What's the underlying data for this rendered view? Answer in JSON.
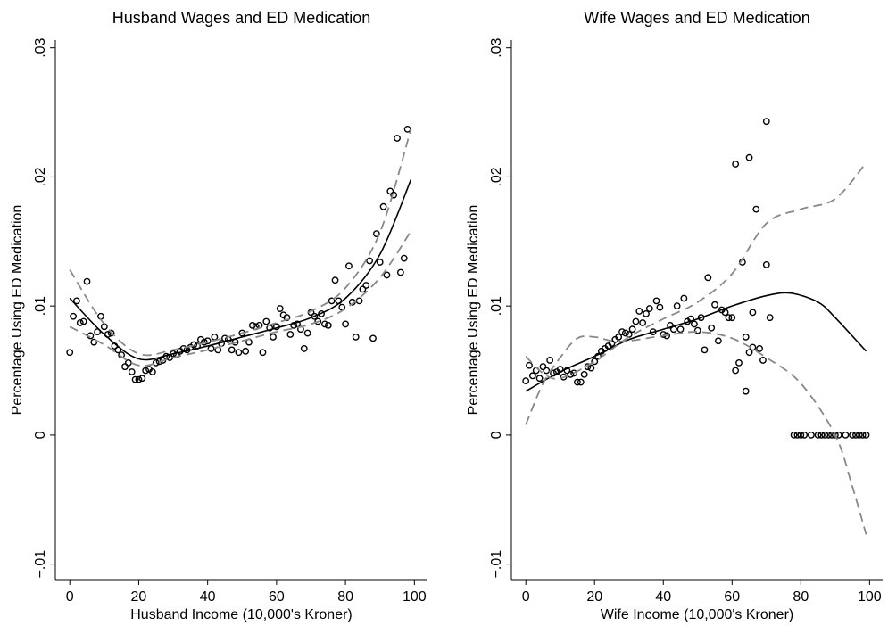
{
  "chart_data": [
    {
      "type": "scatter",
      "title": "Husband Wages and ED Medication",
      "x_label": "Husband Income (10,000's Kroner)",
      "y_label": "Percentage Using ED Medication",
      "xlim": [
        -4.2,
        103.8
      ],
      "ylim": [
        -0.0112,
        0.0306
      ],
      "xticks": [
        0,
        20,
        40,
        60,
        80,
        100
      ],
      "yticks": [
        {
          "value": -0.01,
          "label": "−.01"
        },
        0,
        {
          "value": 0.01,
          "label": ".01"
        },
        {
          "value": 0.02,
          "label": ".02"
        },
        {
          "value": 0.03,
          "label": ".03"
        }
      ],
      "series": [
        {
          "type": "scatter",
          "color": "#000000",
          "x": [
            0,
            1,
            2,
            3,
            4,
            5,
            6,
            7,
            8,
            9,
            10,
            11,
            12,
            13,
            14,
            15,
            16,
            17,
            18,
            19,
            20,
            21,
            22,
            23,
            24,
            25,
            26,
            27,
            28,
            29,
            30,
            31,
            32,
            33,
            34,
            35,
            36,
            37,
            38,
            39,
            40,
            41,
            42,
            43,
            44,
            45,
            46,
            47,
            48,
            49,
            50,
            51,
            52,
            53,
            54,
            55,
            56,
            57,
            58,
            59,
            60,
            61,
            62,
            63,
            64,
            65,
            66,
            67,
            68,
            69,
            70,
            71,
            72,
            73,
            74,
            75,
            76,
            77,
            78,
            79,
            80,
            81,
            82,
            83,
            84,
            85,
            86,
            87,
            88,
            89,
            90,
            91,
            92,
            93,
            94,
            95,
            96,
            97,
            98
          ],
          "values": [
            0.0064,
            0.0092,
            0.0104,
            0.0087,
            0.0088,
            0.0119,
            0.0077,
            0.0072,
            0.008,
            0.0092,
            0.0084,
            0.0078,
            0.0079,
            0.0069,
            0.0066,
            0.0062,
            0.0053,
            0.0056,
            0.0049,
            0.0043,
            0.0043,
            0.0044,
            0.005,
            0.0051,
            0.0049,
            0.0056,
            0.0057,
            0.0058,
            0.0061,
            0.006,
            0.0063,
            0.0062,
            0.0065,
            0.0067,
            0.0066,
            0.0068,
            0.007,
            0.0069,
            0.0074,
            0.0072,
            0.0073,
            0.0067,
            0.0076,
            0.0066,
            0.0071,
            0.0075,
            0.0074,
            0.0066,
            0.0072,
            0.0064,
            0.0079,
            0.0065,
            0.0072,
            0.0085,
            0.0084,
            0.0085,
            0.0064,
            0.0088,
            0.0083,
            0.0076,
            0.0084,
            0.0098,
            0.0093,
            0.0091,
            0.0078,
            0.0085,
            0.0086,
            0.0082,
            0.0067,
            0.0079,
            0.0095,
            0.0092,
            0.0088,
            0.0094,
            0.0086,
            0.0085,
            0.0104,
            0.012,
            0.0104,
            0.0099,
            0.0086,
            0.0131,
            0.0103,
            0.0076,
            0.0104,
            0.0113,
            0.0116,
            0.0135,
            0.0075,
            0.0156,
            0.0134,
            0.0177,
            0.0124,
            0.0189,
            0.0186,
            0.023,
            0.0126,
            0.0137,
            0.0237
          ]
        },
        {
          "type": "line",
          "color": "#000000",
          "dashed": false,
          "x": [
            0,
            10,
            20,
            30,
            40,
            50,
            60,
            70,
            80,
            90,
            99
          ],
          "values": [
            0.0106,
            0.0078,
            0.0059,
            0.0063,
            0.0069,
            0.0076,
            0.0083,
            0.0091,
            0.0106,
            0.014,
            0.0198
          ]
        },
        {
          "type": "line",
          "color": "#888888",
          "dashed": true,
          "x": [
            0,
            10,
            20,
            30,
            40,
            50,
            60,
            70,
            80,
            90,
            99
          ],
          "values": [
            0.0128,
            0.0086,
            0.0063,
            0.0066,
            0.0072,
            0.0079,
            0.0087,
            0.0096,
            0.0114,
            0.0157,
            0.0237
          ]
        },
        {
          "type": "line",
          "color": "#888888",
          "dashed": true,
          "x": [
            0,
            10,
            20,
            30,
            40,
            50,
            60,
            70,
            80,
            90,
            99
          ],
          "values": [
            0.0084,
            0.007,
            0.0054,
            0.006,
            0.0066,
            0.0073,
            0.008,
            0.0086,
            0.0098,
            0.0122,
            0.0158
          ]
        }
      ]
    },
    {
      "type": "scatter",
      "title": "Wife Wages and ED Medication",
      "x_label": "Wife Income (10,000's Kroner)",
      "y_label": "Percentage Using ED Medication",
      "xlim": [
        -4.2,
        103.8
      ],
      "ylim": [
        -0.0112,
        0.0306
      ],
      "xticks": [
        0,
        20,
        40,
        60,
        80,
        100
      ],
      "yticks": [
        {
          "value": -0.01,
          "label": "−.01"
        },
        0,
        {
          "value": 0.01,
          "label": ".01"
        },
        {
          "value": 0.02,
          "label": ".02"
        },
        {
          "value": 0.03,
          "label": ".03"
        }
      ],
      "series": [
        {
          "type": "scatter",
          "color": "#000000",
          "x": [
            0,
            1,
            2,
            3,
            4,
            5,
            6,
            7,
            8,
            9,
            10,
            11,
            12,
            13,
            14,
            15,
            16,
            17,
            18,
            19,
            20,
            21,
            22,
            23,
            24,
            25,
            26,
            27,
            28,
            29,
            30,
            31,
            32,
            33,
            34,
            35,
            36,
            37,
            38,
            39,
            40,
            41,
            42,
            43,
            44,
            45,
            46,
            47,
            48,
            49,
            50,
            51,
            52,
            53,
            54,
            55,
            56,
            57,
            58,
            59,
            60,
            61,
            61,
            62,
            63,
            64,
            64,
            65,
            65,
            66,
            66,
            67,
            68,
            69,
            70,
            70,
            71,
            78,
            79,
            80,
            81,
            83,
            85,
            86,
            87,
            88,
            89,
            90,
            91,
            93,
            95,
            96,
            97,
            98,
            99
          ],
          "values": [
            0.0042,
            0.0054,
            0.0046,
            0.005,
            0.0044,
            0.0053,
            0.005,
            0.0058,
            0.0048,
            0.0049,
            0.0051,
            0.0045,
            0.005,
            0.0047,
            0.0048,
            0.0041,
            0.0041,
            0.0047,
            0.0053,
            0.0052,
            0.0057,
            0.0061,
            0.0065,
            0.0067,
            0.0069,
            0.0071,
            0.0074,
            0.0076,
            0.008,
            0.0079,
            0.0078,
            0.0082,
            0.0088,
            0.0096,
            0.0087,
            0.0094,
            0.0098,
            0.008,
            0.0104,
            0.0099,
            0.0078,
            0.0077,
            0.0085,
            0.0082,
            0.01,
            0.0082,
            0.0106,
            0.0088,
            0.009,
            0.0086,
            0.0081,
            0.0091,
            0.0066,
            0.0122,
            0.0083,
            0.0101,
            0.0073,
            0.0097,
            0.0095,
            0.0091,
            0.0091,
            0.005,
            0.021,
            0.0056,
            0.0134,
            0.0034,
            0.0076,
            0.0064,
            0.0215,
            0.0068,
            0.0095,
            0.0175,
            0.0067,
            0.0058,
            0.0132,
            0.0243,
            0.0091,
            0,
            0,
            0,
            0,
            0,
            0,
            0,
            0,
            0,
            0,
            0,
            0,
            0,
            0,
            0,
            0,
            0,
            0
          ]
        },
        {
          "type": "line",
          "color": "#000000",
          "dashed": false,
          "x": [
            0,
            10,
            20,
            30,
            40,
            50,
            60,
            70,
            77,
            85,
            90,
            99
          ],
          "values": [
            0.0034,
            0.0049,
            0.0061,
            0.0074,
            0.0082,
            0.009,
            0.01,
            0.0108,
            0.011,
            0.0103,
            0.0091,
            0.0065
          ]
        },
        {
          "type": "line",
          "color": "#888888",
          "dashed": true,
          "x": [
            0,
            5,
            10,
            20,
            30,
            40,
            50,
            60,
            70,
            80,
            90,
            99
          ],
          "values": [
            0.0061,
            0.0048,
            0.0044,
            0.0057,
            0.0076,
            0.009,
            0.0103,
            0.0125,
            0.0164,
            0.0175,
            0.0183,
            0.0211
          ]
        },
        {
          "type": "line",
          "color": "#888888",
          "dashed": true,
          "x": [
            0,
            5,
            10,
            15,
            20,
            25,
            30,
            40,
            50,
            60,
            70,
            80,
            90,
            95,
            99
          ],
          "values": [
            0.0008,
            0.004,
            0.006,
            0.0075,
            0.0076,
            0.0073,
            0.0073,
            0.0077,
            0.008,
            0.0075,
            0.006,
            0.004,
            0,
            -0.004,
            -0.0077
          ]
        }
      ]
    }
  ]
}
